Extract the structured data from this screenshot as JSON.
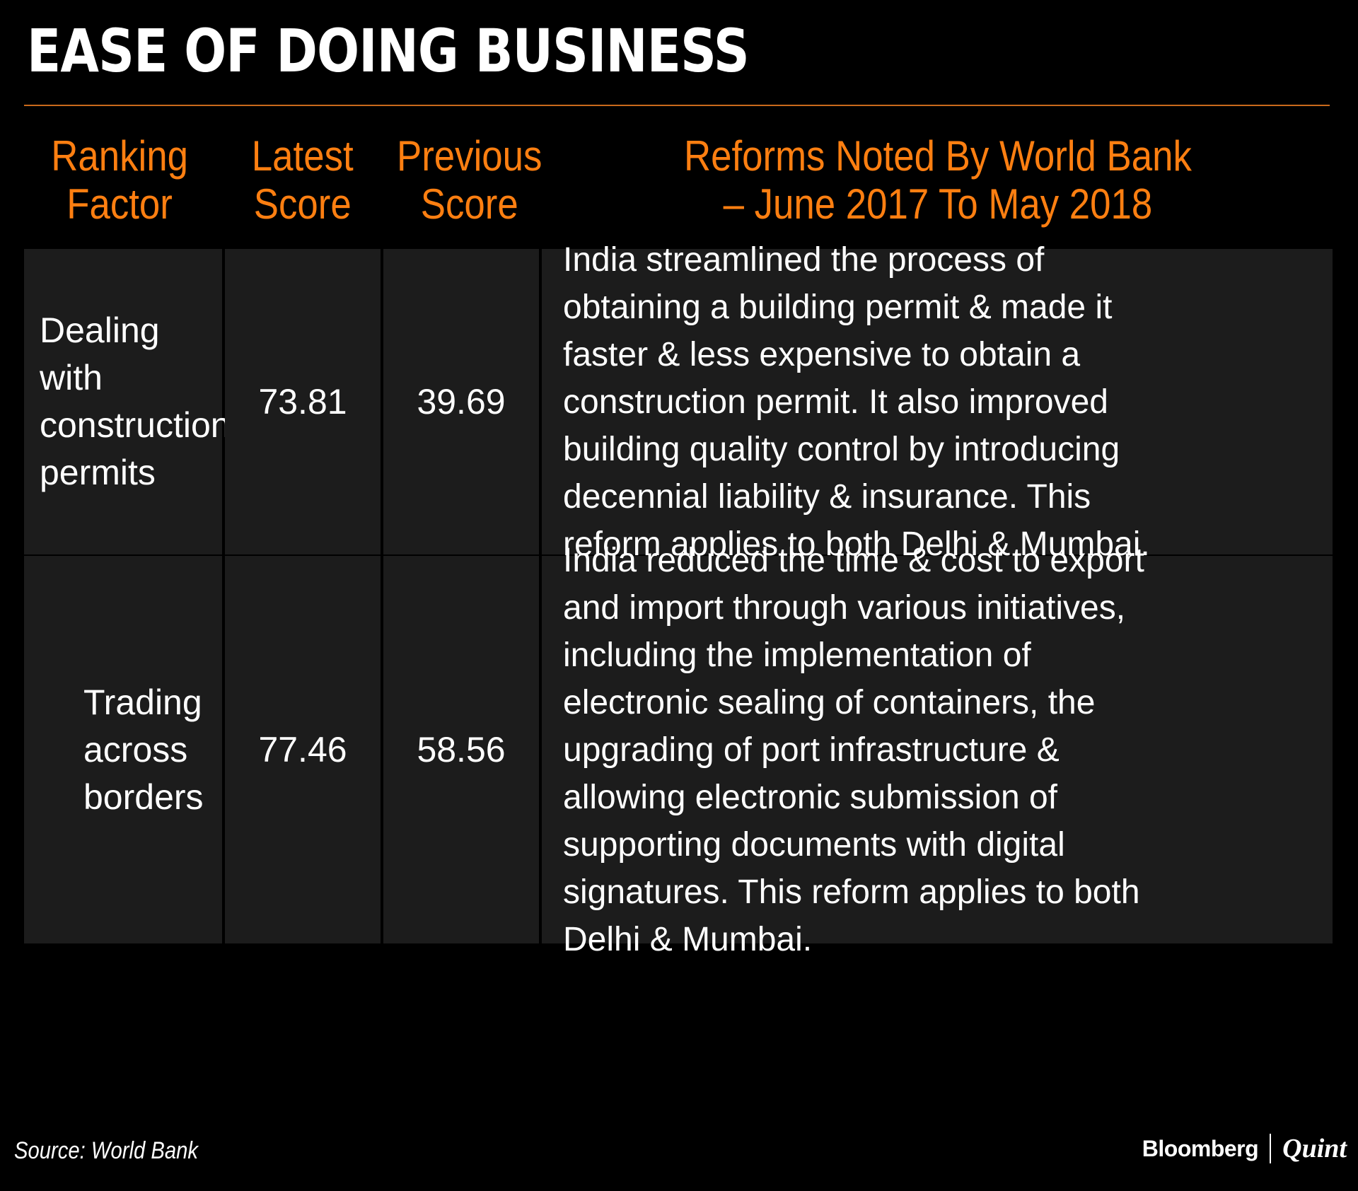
{
  "title": "EASE OF DOING BUSINESS",
  "colors": {
    "background": "#000000",
    "cell_background": "#1c1c1c",
    "header_text": "#ff7f11",
    "rule": "#c96a1c",
    "body_text": "#ffffff"
  },
  "chart_data": {
    "type": "table",
    "title": "EASE OF DOING BUSINESS",
    "columns": [
      "Ranking Factor",
      "Latest Score",
      "Previous Score",
      "Reforms Noted By World Bank – June 2017 To May 2018"
    ],
    "header_lines": [
      [
        "Ranking",
        "Factor"
      ],
      [
        "Latest",
        "Score"
      ],
      [
        "Previous",
        "Score"
      ],
      [
        "Reforms Noted By World Bank",
        "– June 2017 To May 2018"
      ]
    ],
    "rows": [
      {
        "factor": "Dealing with construction permits",
        "factor_lines": [
          "Dealing with",
          "construction",
          "permits"
        ],
        "latest": "73.81",
        "previous": "39.69",
        "reform": "India streamlined the process of obtaining a building permit & made it faster & less expensive to obtain a construction permit. It also improved building quality control by introducing decennial liability & insurance. This reform applies to both Delhi & Mumbai.",
        "reform_lines": [
          "India streamlined the process of",
          "obtaining a building permit & made it",
          "faster & less expensive to obtain a",
          "construction permit. It also improved",
          "building quality control by introducing",
          "decennial liability & insurance. This",
          "reform applies to both Delhi & Mumbai."
        ]
      },
      {
        "factor": "Trading across borders",
        "factor_lines": [
          "Trading",
          "across",
          "borders"
        ],
        "latest": "77.46",
        "previous": "58.56",
        "reform": "India reduced the time & cost to export and import through various initiatives, including the implementation of electronic sealing of containers, the upgrading of port infrastructure & allowing electronic submission of supporting documents with digital signatures. This reform applies to both Delhi & Mumbai.",
        "reform_lines": [
          "India reduced the time & cost to export",
          "and import through various initiatives,",
          "including the implementation of",
          "electronic sealing of containers, the",
          "upgrading of port infrastructure &",
          "allowing electronic submission of",
          "supporting documents with digital",
          "signatures. This reform applies to both",
          "Delhi & Mumbai."
        ]
      }
    ]
  },
  "footer": {
    "source": "Source: World Bank",
    "brand_main": "Bloomberg",
    "brand_sub": "Quint"
  }
}
